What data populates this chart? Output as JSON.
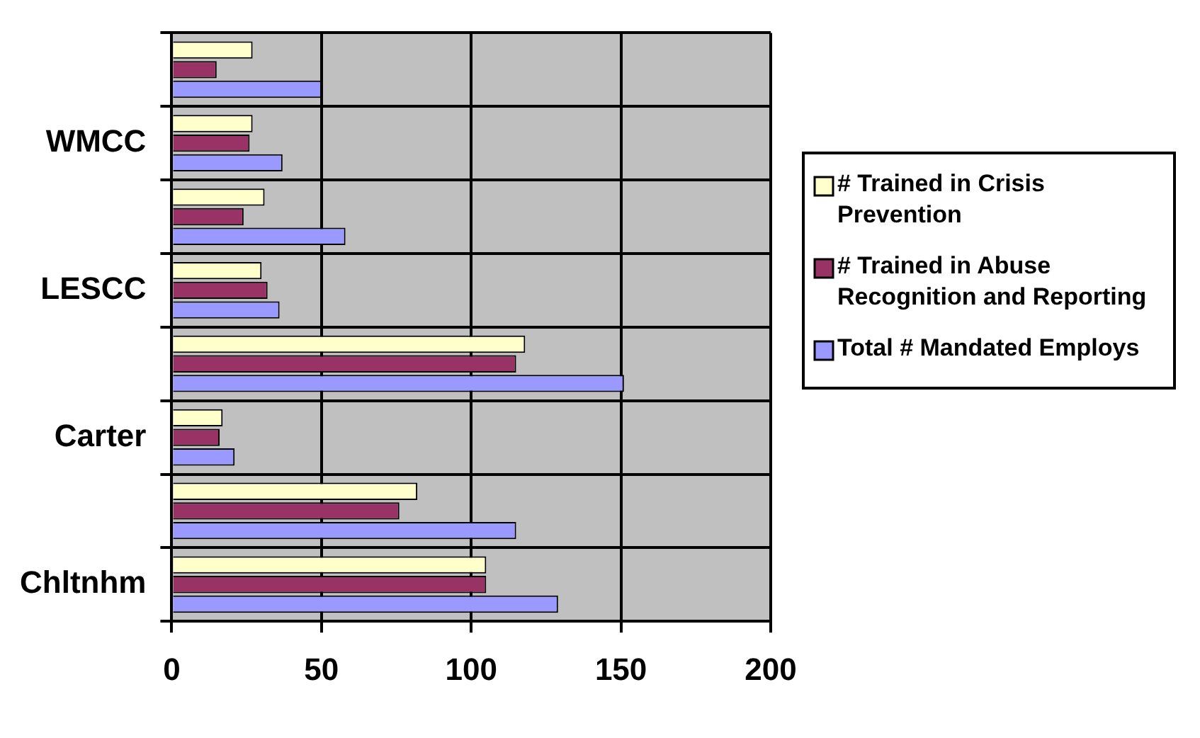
{
  "chart_data": {
    "type": "bar",
    "orientation": "horizontal",
    "categories": [
      null,
      "WMCC",
      null,
      "LESCC",
      null,
      "Carter",
      null,
      "Chltnhm"
    ],
    "series": [
      {
        "name": "# Trained in Crisis Prevention",
        "color": "#ffffcc",
        "values": [
          27,
          27,
          31,
          30,
          118,
          17,
          82,
          105
        ]
      },
      {
        "name": "# Trained in Abuse Recognition and Reporting",
        "color": "#993366",
        "values": [
          15,
          26,
          24,
          32,
          115,
          16,
          76,
          105
        ]
      },
      {
        "name": "Total # Mandated Employs",
        "color": "#9999ff",
        "values": [
          50,
          37,
          58,
          36,
          151,
          21,
          115,
          129
        ]
      }
    ],
    "xlim": [
      0,
      200
    ],
    "xticks": [
      0,
      50,
      100,
      150,
      200
    ],
    "grid": true,
    "legend": "right"
  }
}
